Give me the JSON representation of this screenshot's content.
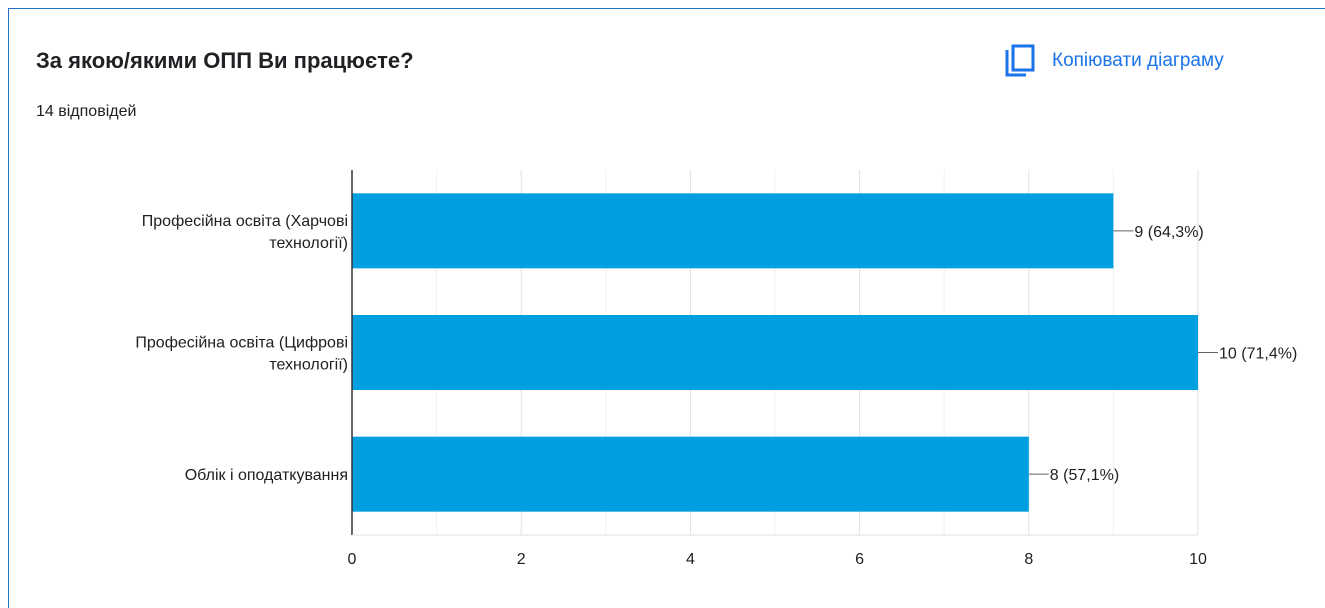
{
  "header": {
    "title": "За якою/якими ОПП Ви працюєте?",
    "responses": "14 відповідей",
    "copy_label": "Копіювати діаграму",
    "copy_icon": "copy-icon"
  },
  "chart_data": {
    "type": "bar",
    "orientation": "horizontal",
    "categories": [
      [
        "Професійна освіта (Харчові",
        "технології)"
      ],
      [
        "Професійна освіта (Цифрові",
        "технології)"
      ],
      [
        "Облік і оподаткування"
      ]
    ],
    "values": [
      9,
      10,
      8
    ],
    "data_labels": [
      "9 (64,3%)",
      "10 (71,4%)",
      "8 (57,1%)"
    ],
    "x_ticks": [
      "0",
      "2",
      "4",
      "6",
      "8",
      "10"
    ],
    "xlim": [
      0,
      10
    ],
    "grid": true,
    "bar_color": "#009fdf"
  }
}
